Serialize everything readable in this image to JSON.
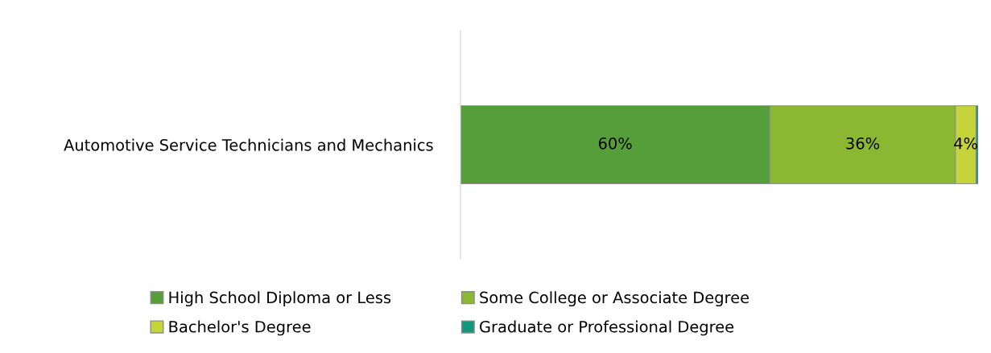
{
  "chart_data": {
    "type": "bar",
    "orientation": "horizontal",
    "stacked": true,
    "categories": [
      "Automotive Service Technicians and Mechanics"
    ],
    "series": [
      {
        "name": "High School Diploma or Less",
        "color": "#559e3a",
        "values": [
          60
        ],
        "value_labels": [
          "60%"
        ]
      },
      {
        "name": "Some College or Associate Degree",
        "color": "#8ab833",
        "values": [
          36
        ],
        "value_labels": [
          "36%"
        ]
      },
      {
        "name": "Bachelor's Degree",
        "color": "#c5d43b",
        "values": [
          4
        ],
        "value_labels": [
          "4%"
        ]
      },
      {
        "name": "Graduate or Professional Degree",
        "color": "#13967a",
        "values": [
          0.4
        ],
        "value_labels": [
          null
        ]
      }
    ],
    "legend": "bottom",
    "grid": false
  }
}
